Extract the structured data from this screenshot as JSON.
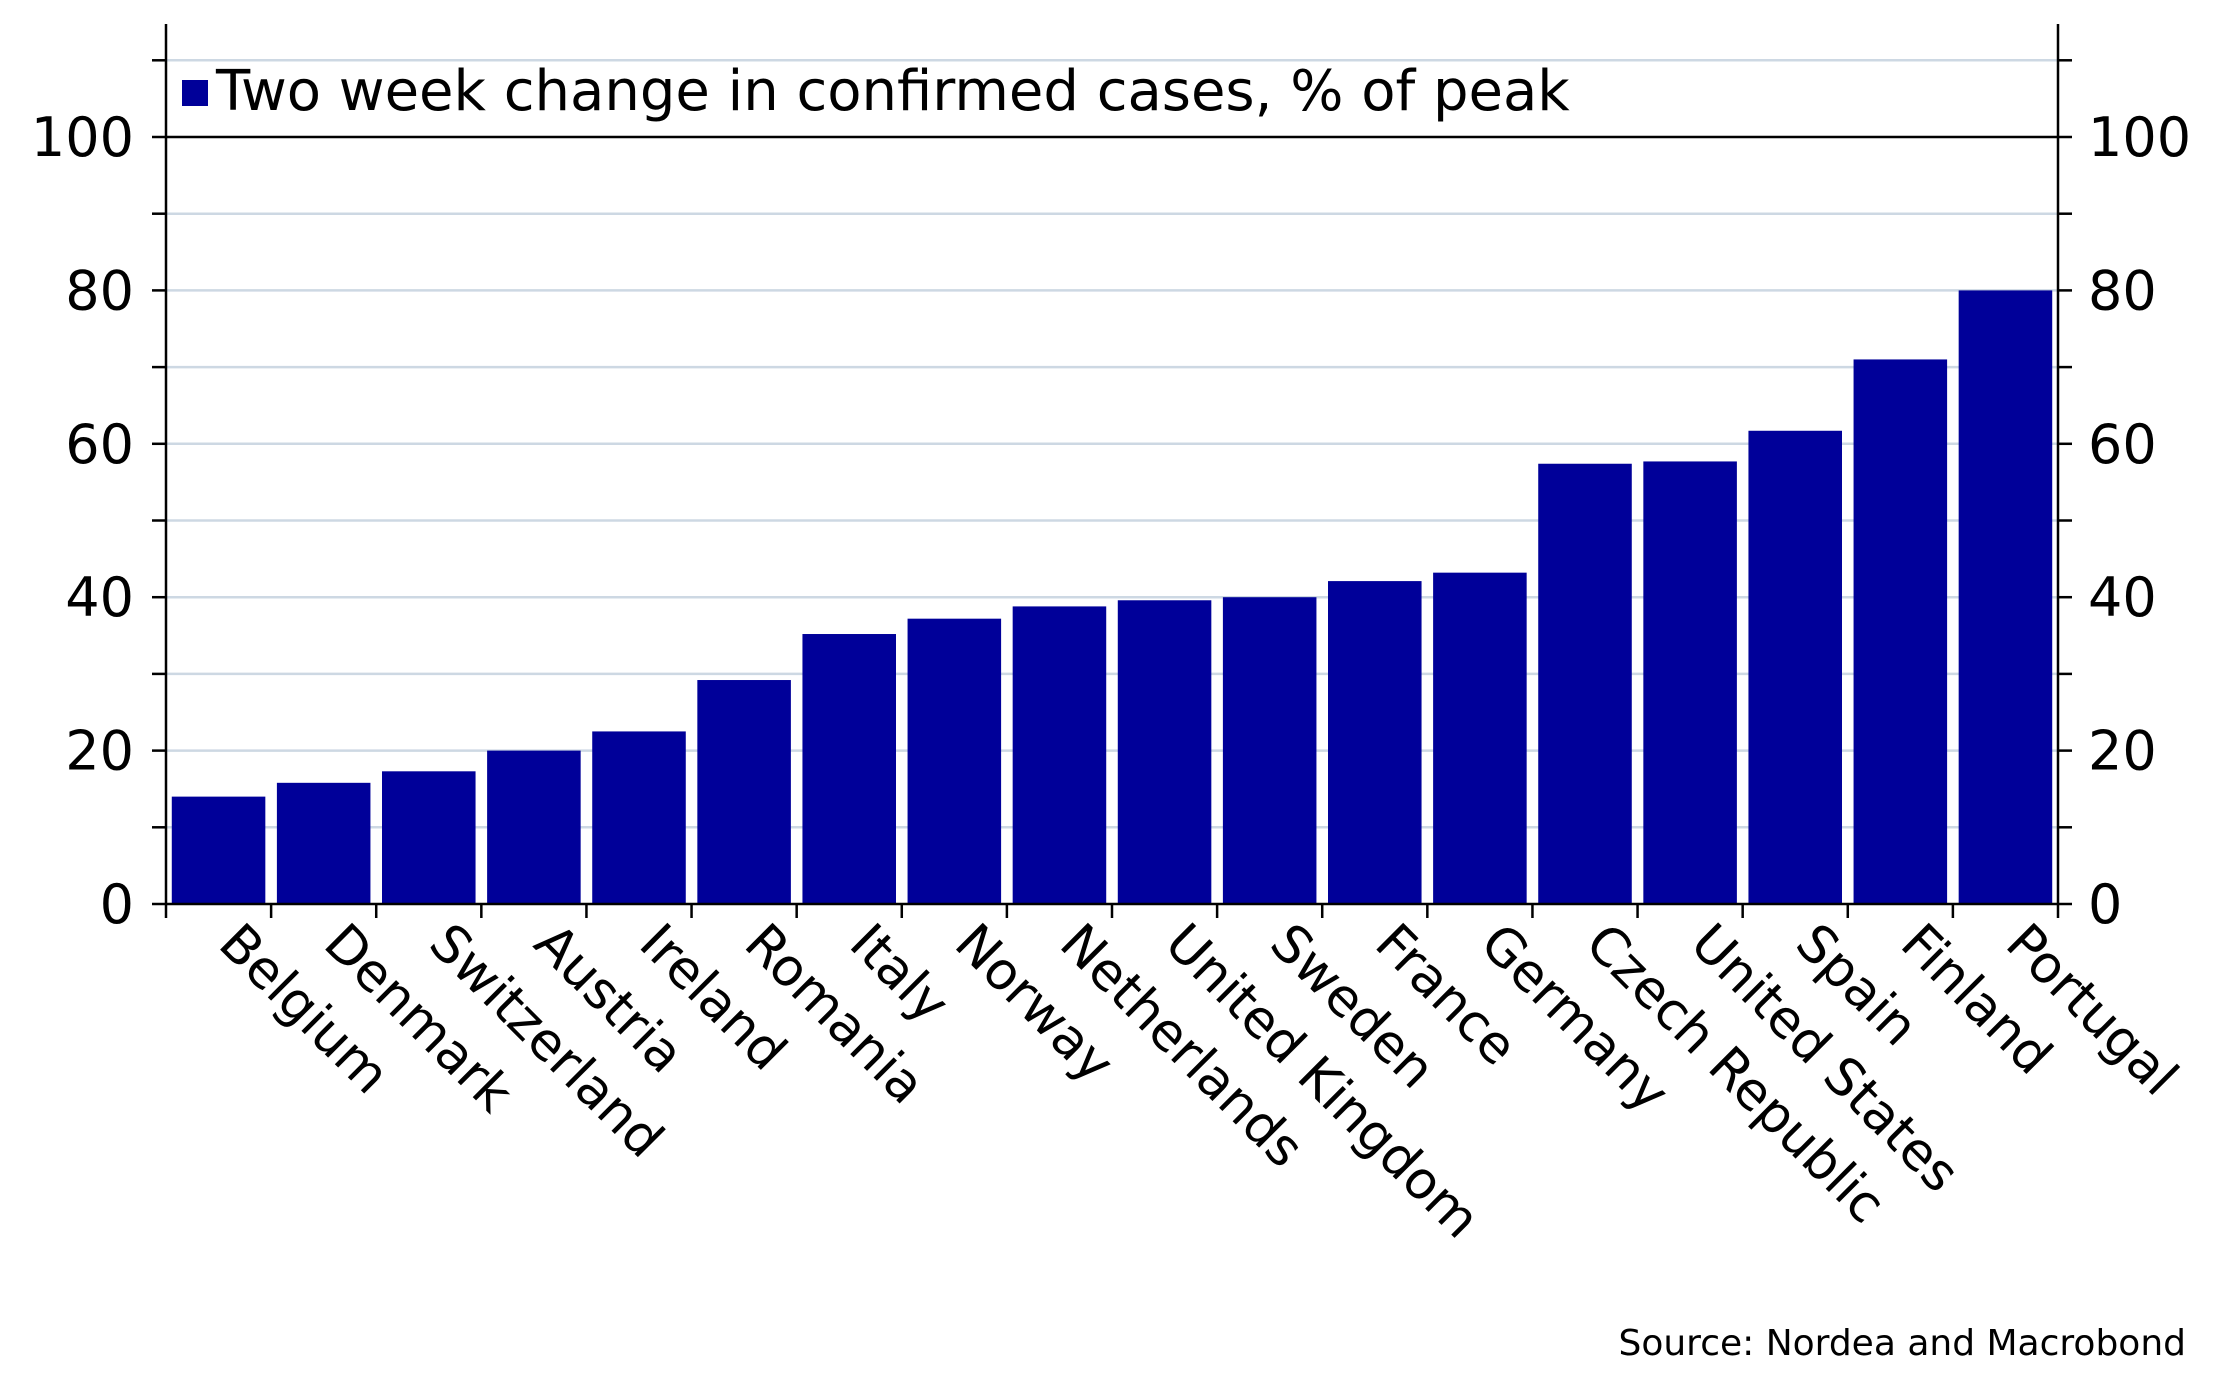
{
  "chart_data": {
    "type": "bar",
    "categories": [
      "Belgium",
      "Denmark",
      "Switzerland",
      "Austria",
      "Ireland",
      "Romania",
      "Italy",
      "Norway",
      "Netherlands",
      "United Kingdom",
      "Sweden",
      "France",
      "Germany",
      "Czech Republic",
      "United States",
      "Spain",
      "Finland",
      "Portugal"
    ],
    "series": [
      {
        "name": "Two week change in confirmed cases, % of peak",
        "values": [
          14,
          15.8,
          17.3,
          20,
          22.5,
          29.2,
          35.2,
          37.2,
          38.8,
          39.6,
          40,
          42.1,
          43.2,
          57.4,
          57.7,
          61.7,
          71,
          80
        ],
        "color": "#000099"
      }
    ],
    "ylim": [
      0,
      112
    ],
    "yticks": [
      "0",
      "20",
      "40",
      "60",
      "80",
      "100"
    ],
    "y_minor_step": 10,
    "grid": true,
    "grid_color": "#cdd8e3",
    "legend_position": "top-left",
    "secondary_y_axis": "mirrored",
    "source": "Source: Nordea and Macrobond"
  }
}
